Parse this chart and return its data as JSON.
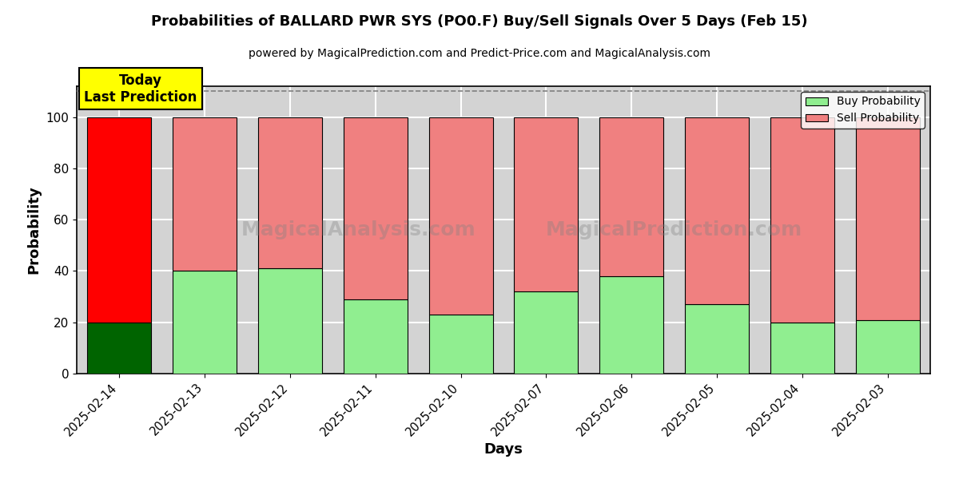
{
  "title": "Probabilities of BALLARD PWR SYS (PO0.F) Buy/Sell Signals Over 5 Days (Feb 15)",
  "subtitle": "powered by MagicalPrediction.com and Predict-Price.com and MagicalAnalysis.com",
  "xlabel": "Days",
  "ylabel": "Probability",
  "categories": [
    "2025-02-14",
    "2025-02-13",
    "2025-02-12",
    "2025-02-11",
    "2025-02-10",
    "2025-02-07",
    "2025-02-06",
    "2025-02-05",
    "2025-02-04",
    "2025-02-03"
  ],
  "buy_values": [
    20,
    40,
    41,
    29,
    23,
    32,
    38,
    27,
    20,
    21
  ],
  "sell_values": [
    80,
    60,
    59,
    71,
    77,
    68,
    62,
    73,
    80,
    79
  ],
  "today_buy_color": "#006400",
  "today_sell_color": "#FF0000",
  "buy_color": "#90EE90",
  "sell_color": "#F08080",
  "today_annotation": "Today\nLast Prediction",
  "today_annotation_bg": "#FFFF00",
  "ylim": [
    0,
    112
  ],
  "dashed_line_y": 110,
  "legend_buy_label": "Buy Probability",
  "legend_sell_label": "Sell Probability",
  "watermark1_text": "MagicalAnalysis.com",
  "watermark2_text": "MagicalPrediction.com",
  "plot_bg_color": "#D3D3D3",
  "fig_bg_color": "#FFFFFF",
  "grid_color": "#FFFFFF"
}
